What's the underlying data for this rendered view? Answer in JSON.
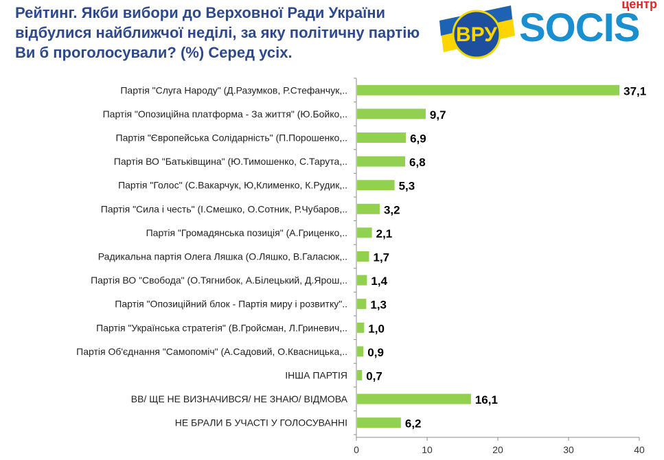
{
  "header": {
    "title_bold": "Рейтинг.",
    "title_text": " Якби вибори до Верховної Ради України відбулися найближчої неділі, за яку політичну партію Ви б проголосували? (%) ",
    "title_bold_end": "Серед усіх."
  },
  "logos": {
    "vru_text": "ВРУ",
    "socis_text": "SOCIS",
    "socis_center": "центр"
  },
  "colors": {
    "bar": "#92d050",
    "title": "#2e4a8c",
    "socis_blue": "#1a8fd0",
    "socis_red": "#e2262a"
  },
  "chart_data": {
    "type": "bar",
    "orientation": "horizontal",
    "categories": [
      "Партія \"Слуга Народу\" (Д.Разумков, Р.Стефанчук,..",
      "Партія \"Опозиційна платформа - За життя\" (Ю.Бойко,..",
      "Партія \"Європейська Солідарність\" (П.Порошенко,..",
      "Партія ВО \"Батьківщина\" (Ю.Тимошенко, С.Тарута,..",
      "Партія \"Голос\" (С.Вакарчук, Ю,Клименко, К.Рудик,..",
      "Партія \"Сила і честь\" (І.Смешко, О.Сотник, Р.Чубаров,..",
      "Партія \"Громадянська позиція\" (А.Гриценко,..",
      "Радикальна партія Олега Ляшка (О.Ляшко, В.Галасюк,..",
      "Партія ВО \"Свобода\" (О.Тягнибок, А.Білецький, Д.Ярош,..",
      "Партія \"Опозиційний блок - Партія миру і розвитку\"..",
      "Партія \"Українська стратегія\" (В.Гройсман, Л.Гриневич,..",
      "Партія Об'єднання \"Самопоміч\" (А.Садовий, О.Квасницька,..",
      "ІНША ПАРТІЯ",
      "ВВ/ ЩЕ НЕ ВИЗНАЧИВСЯ/ НЕ ЗНАЮ/ ВІДМОВА",
      "НЕ БРАЛИ Б УЧАСТІ У ГОЛОСУВАННІ"
    ],
    "values": [
      37.1,
      9.7,
      6.9,
      6.8,
      5.3,
      3.2,
      2.1,
      1.7,
      1.4,
      1.3,
      1.0,
      0.9,
      0.7,
      16.1,
      6.2
    ],
    "value_labels": [
      "37,1",
      "9,7",
      "6,9",
      "6,8",
      "5,3",
      "3,2",
      "2,1",
      "1,7",
      "1,4",
      "1,3",
      "1,0",
      "0,9",
      "0,7",
      "16,1",
      "6,2"
    ],
    "xlim": [
      0,
      40
    ],
    "xticks": [
      0,
      10,
      20,
      30,
      40
    ],
    "grid": false,
    "legend": "none",
    "title": "",
    "xlabel": "",
    "ylabel": ""
  }
}
